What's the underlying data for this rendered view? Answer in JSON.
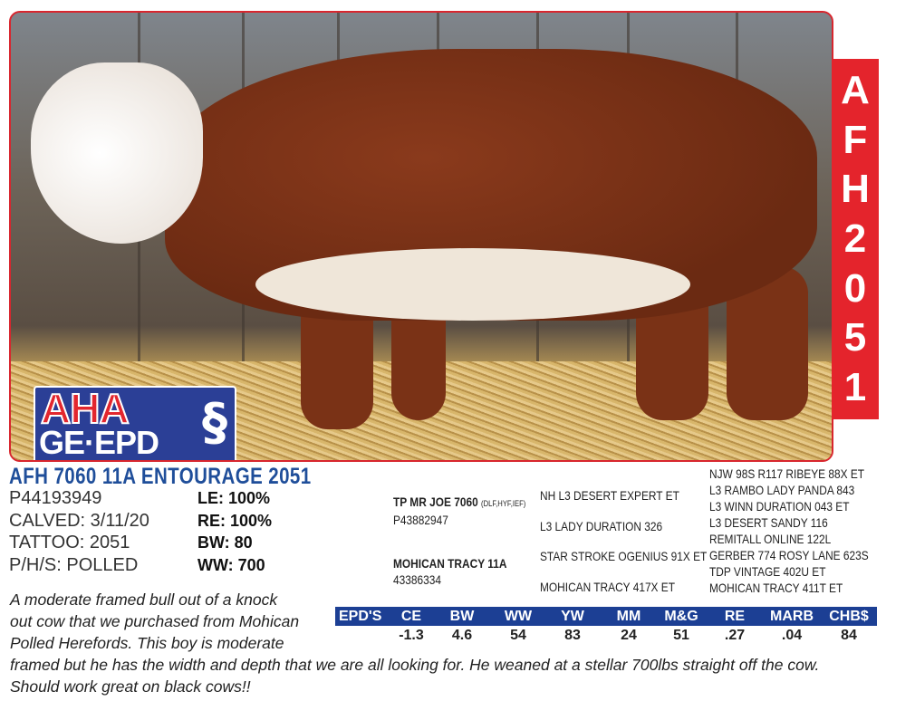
{
  "tag": {
    "letters": [
      "A",
      "F",
      "H",
      "2",
      "0",
      "5",
      "1"
    ]
  },
  "logo": {
    "line1": "AHA",
    "line2": "GE·EPD"
  },
  "animal": {
    "name": "AFH 7060 11A ENTOURAGE 2051",
    "reg": "P44193949",
    "calved": "CALVED: 3/11/20",
    "tattoo": "TATTOO: 2051",
    "phs": "P/H/S: POLLED",
    "le": "LE: 100%",
    "re": "RE: 100%",
    "bw": "BW: 80",
    "ww": "WW: 700"
  },
  "pedigree": {
    "sire": {
      "name": "TP MR JOE 7060",
      "codes": "(DLF,HYF,IEF)",
      "reg": "P43882947"
    },
    "dam": {
      "name": "MOHICAN TRACY 11A",
      "reg": "43386334"
    },
    "grand": [
      "NH L3 DESERT EXPERT ET",
      "L3 LADY DURATION 326",
      "STAR STROKE OGENIUS 91X ET",
      "MOHICAN TRACY 417X ET"
    ],
    "great": [
      "NJW 98S R117 RIBEYE 88X ET",
      "L3 RAMBO LADY PANDA 843",
      "L3 WINN DURATION 043 ET",
      "L3 DESERT SANDY 116",
      "REMITALL ONLINE 122L",
      "GERBER 774 ROSY LANE 623S",
      "TDP VINTAGE 402U ET",
      "MOHICAN TRACY 411T ET"
    ]
  },
  "epd": {
    "label": "EPD'S",
    "headers": [
      "CE",
      "BW",
      "WW",
      "YW",
      "MM",
      "M&G",
      "RE",
      "MARB",
      "CHB$"
    ],
    "values": [
      "-1.3",
      "4.6",
      "54",
      "83",
      "24",
      "51",
      ".27",
      ".04",
      "84"
    ]
  },
  "description": [
    "A moderate framed bull out of a knock",
    "out cow that we purchased from Mohican",
    "Polled Herefords. This boy is moderate",
    "framed but he has the width and depth that we are all looking for. He weaned at a stellar 700lbs straight off the cow.",
    "Should work great on black cows!!"
  ],
  "colors": {
    "accent_red": "#e4242c",
    "title_blue": "#1f4e9a",
    "epd_blue": "#1c3f94"
  }
}
